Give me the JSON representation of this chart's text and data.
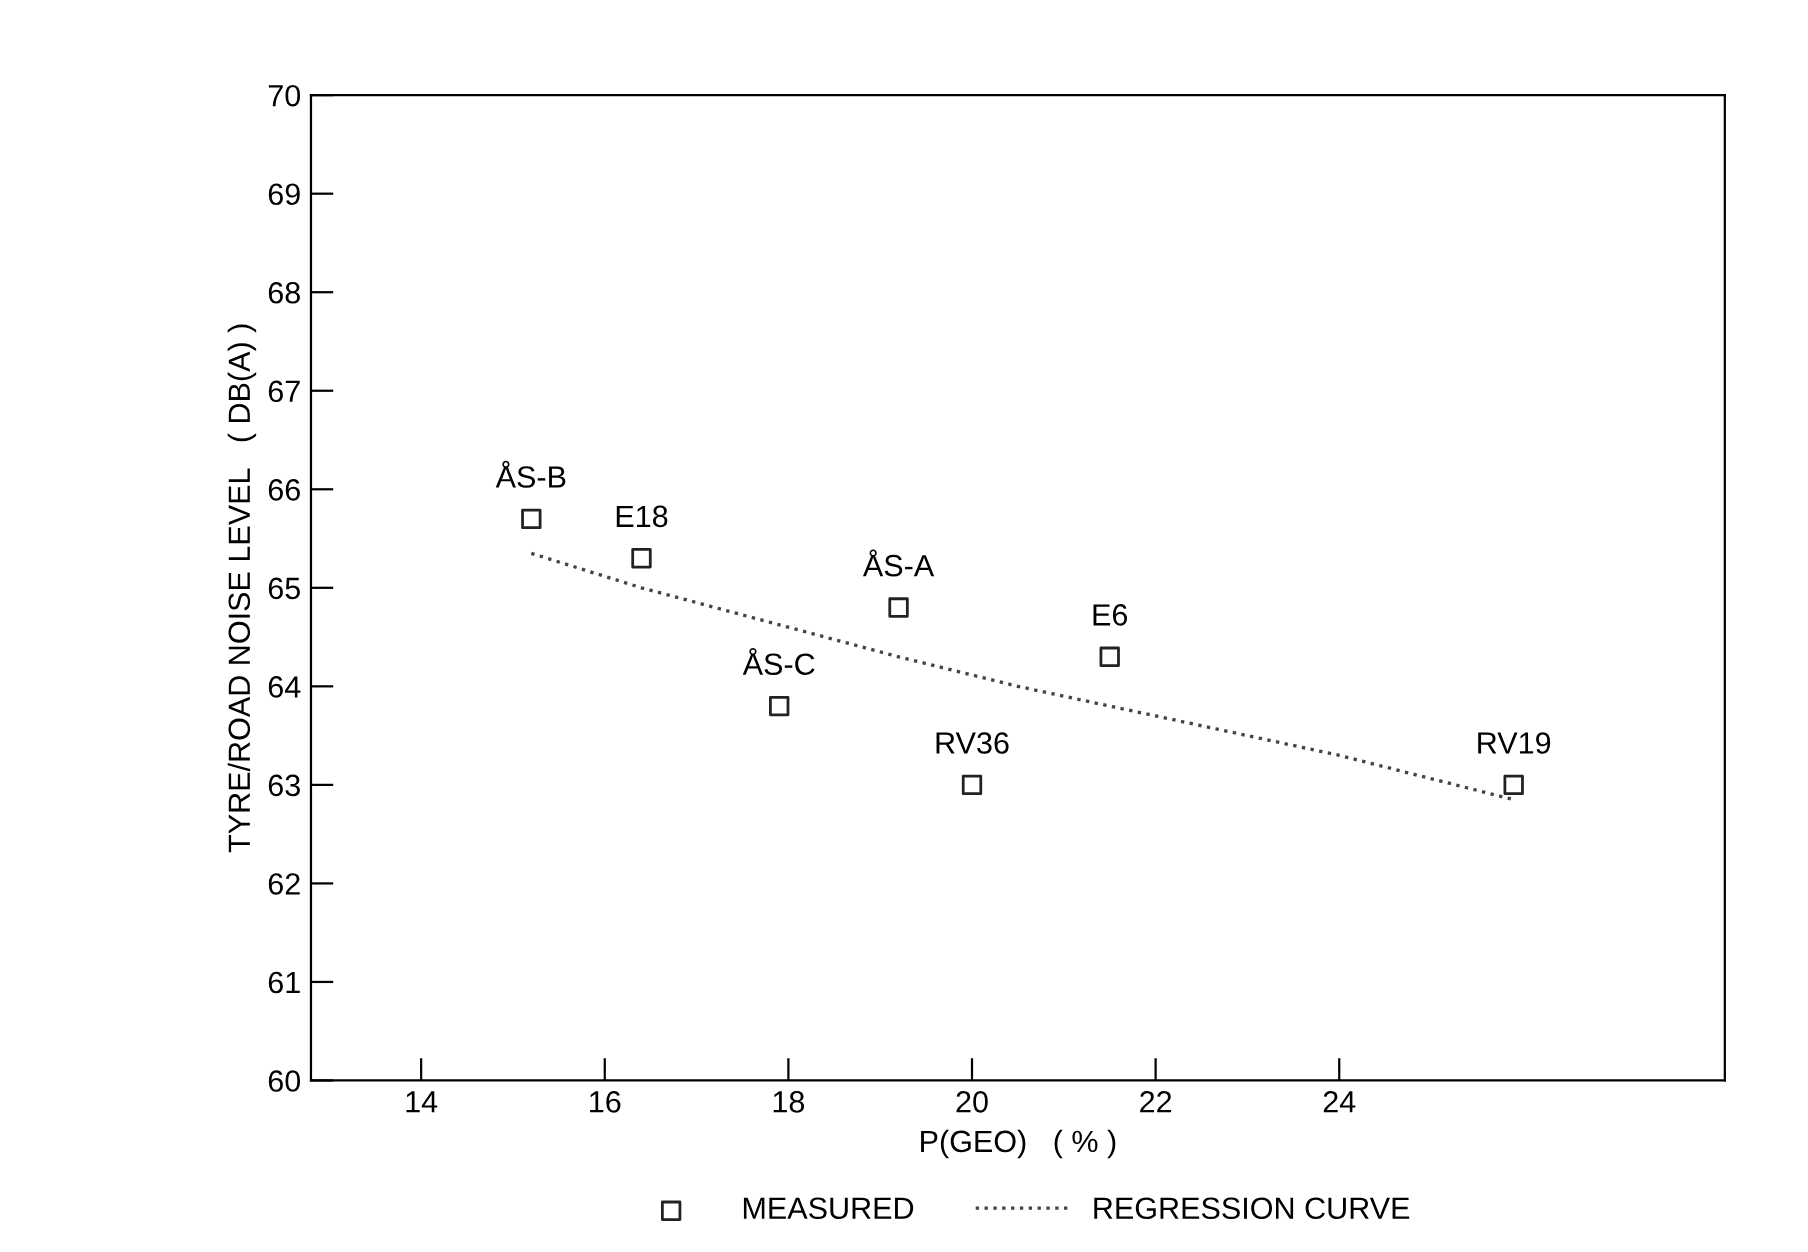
{
  "chart_data": {
    "type": "scatter",
    "xlabel": "P(GEO)   ( % )",
    "ylabel": "TYRE/ROAD NOISE LEVEL   ( DB(A) )",
    "xlim": [
      12.8,
      28.2
    ],
    "xticks": [
      14,
      16,
      18,
      20,
      22,
      24
    ],
    "ylim": [
      60,
      70
    ],
    "yticks": [
      60,
      61,
      62,
      63,
      64,
      65,
      66,
      67,
      68,
      69,
      70
    ],
    "grid": false,
    "legend": "bottom",
    "series": [
      {
        "name": "MEASURED",
        "marker": "square",
        "color": "#222222",
        "x": [
          15.2,
          16.4,
          19.2,
          17.9,
          20.0,
          21.5,
          25.9
        ],
        "values": [
          65.7,
          65.3,
          64.8,
          63.8,
          63.0,
          64.3,
          63.0
        ],
        "value_labels": [
          "ÅS-B",
          "E18",
          "ÅS-A",
          "ÅS-C",
          "RV36",
          "E6",
          "RV19"
        ]
      },
      {
        "name": "REGRESSION CURVE",
        "type": "line",
        "line_style": "dotted",
        "color": "#444444",
        "x": [
          15.2,
          16.4,
          18.0,
          19.2,
          20.5,
          22.0,
          24.0,
          25.9
        ],
        "values": [
          65.35,
          65.0,
          64.6,
          64.3,
          64.0,
          63.7,
          63.3,
          62.85
        ]
      }
    ]
  }
}
